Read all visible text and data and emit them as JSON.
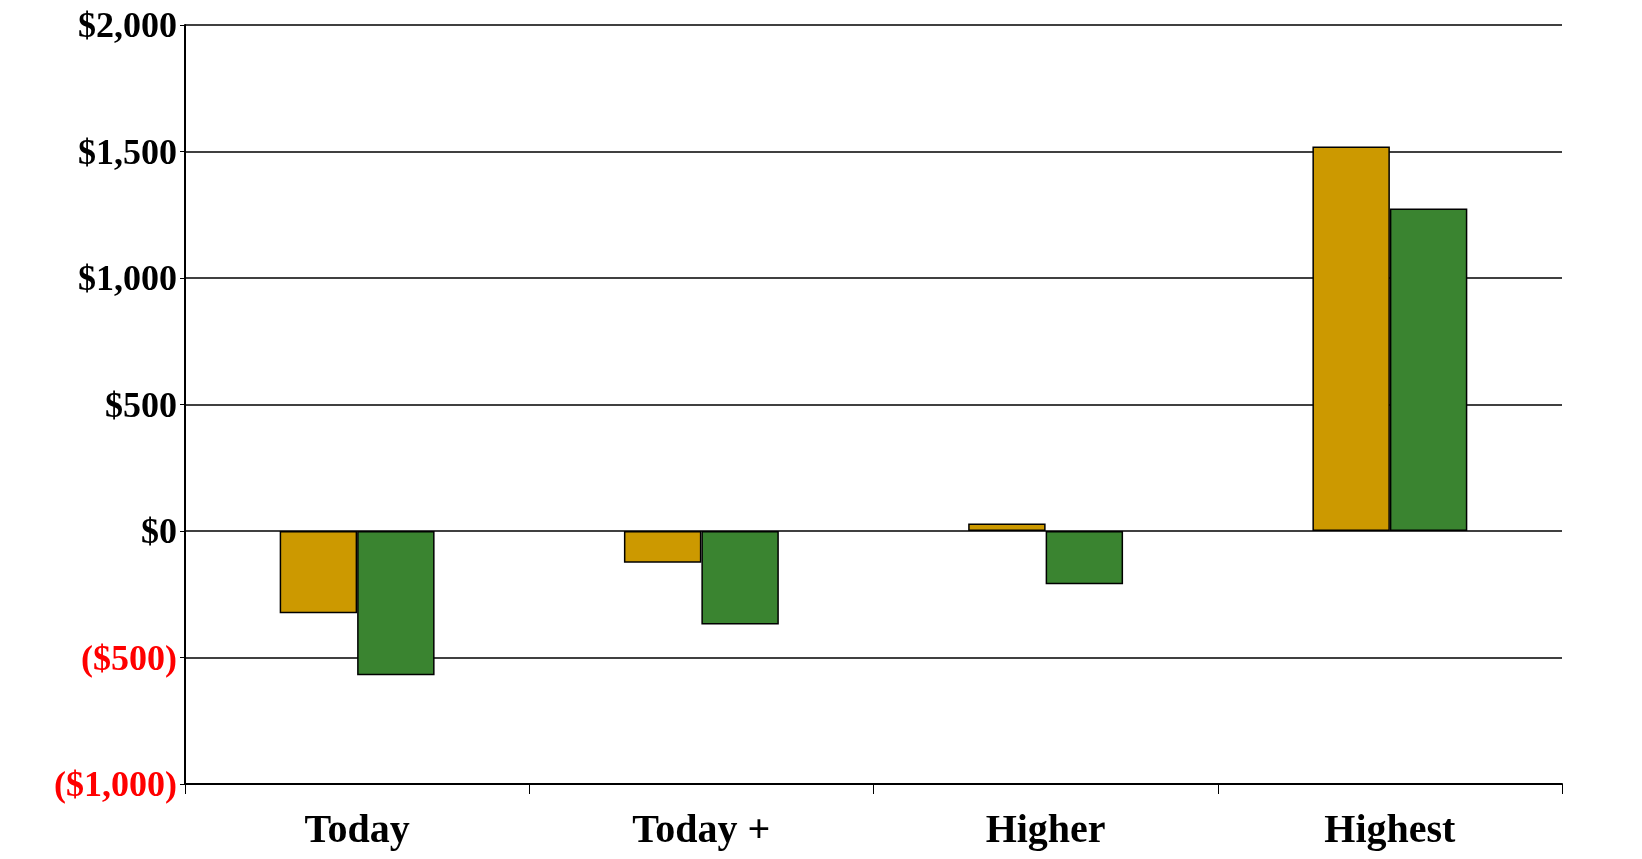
{
  "chart_data": {
    "type": "bar",
    "categories": [
      "Today",
      "Today +",
      "Higher",
      "Highest"
    ],
    "series": [
      {
        "color": "#cc9900",
        "values": [
          -325,
          -125,
          30,
          1520
        ]
      },
      {
        "color": "#3a8430",
        "values": [
          -570,
          -370,
          -210,
          1275
        ]
      }
    ],
    "ylim": [
      -1000,
      2000
    ],
    "yticks": [
      {
        "value": -1000,
        "label": "($1,000)"
      },
      {
        "value": -500,
        "label": "($500)"
      },
      {
        "value": 0,
        "label": "$0"
      },
      {
        "value": 500,
        "label": "$500"
      },
      {
        "value": 1000,
        "label": "$1,000"
      },
      {
        "value": 1500,
        "label": "$1,500"
      },
      {
        "value": 2000,
        "label": "$2,000"
      }
    ],
    "grid": "y"
  }
}
